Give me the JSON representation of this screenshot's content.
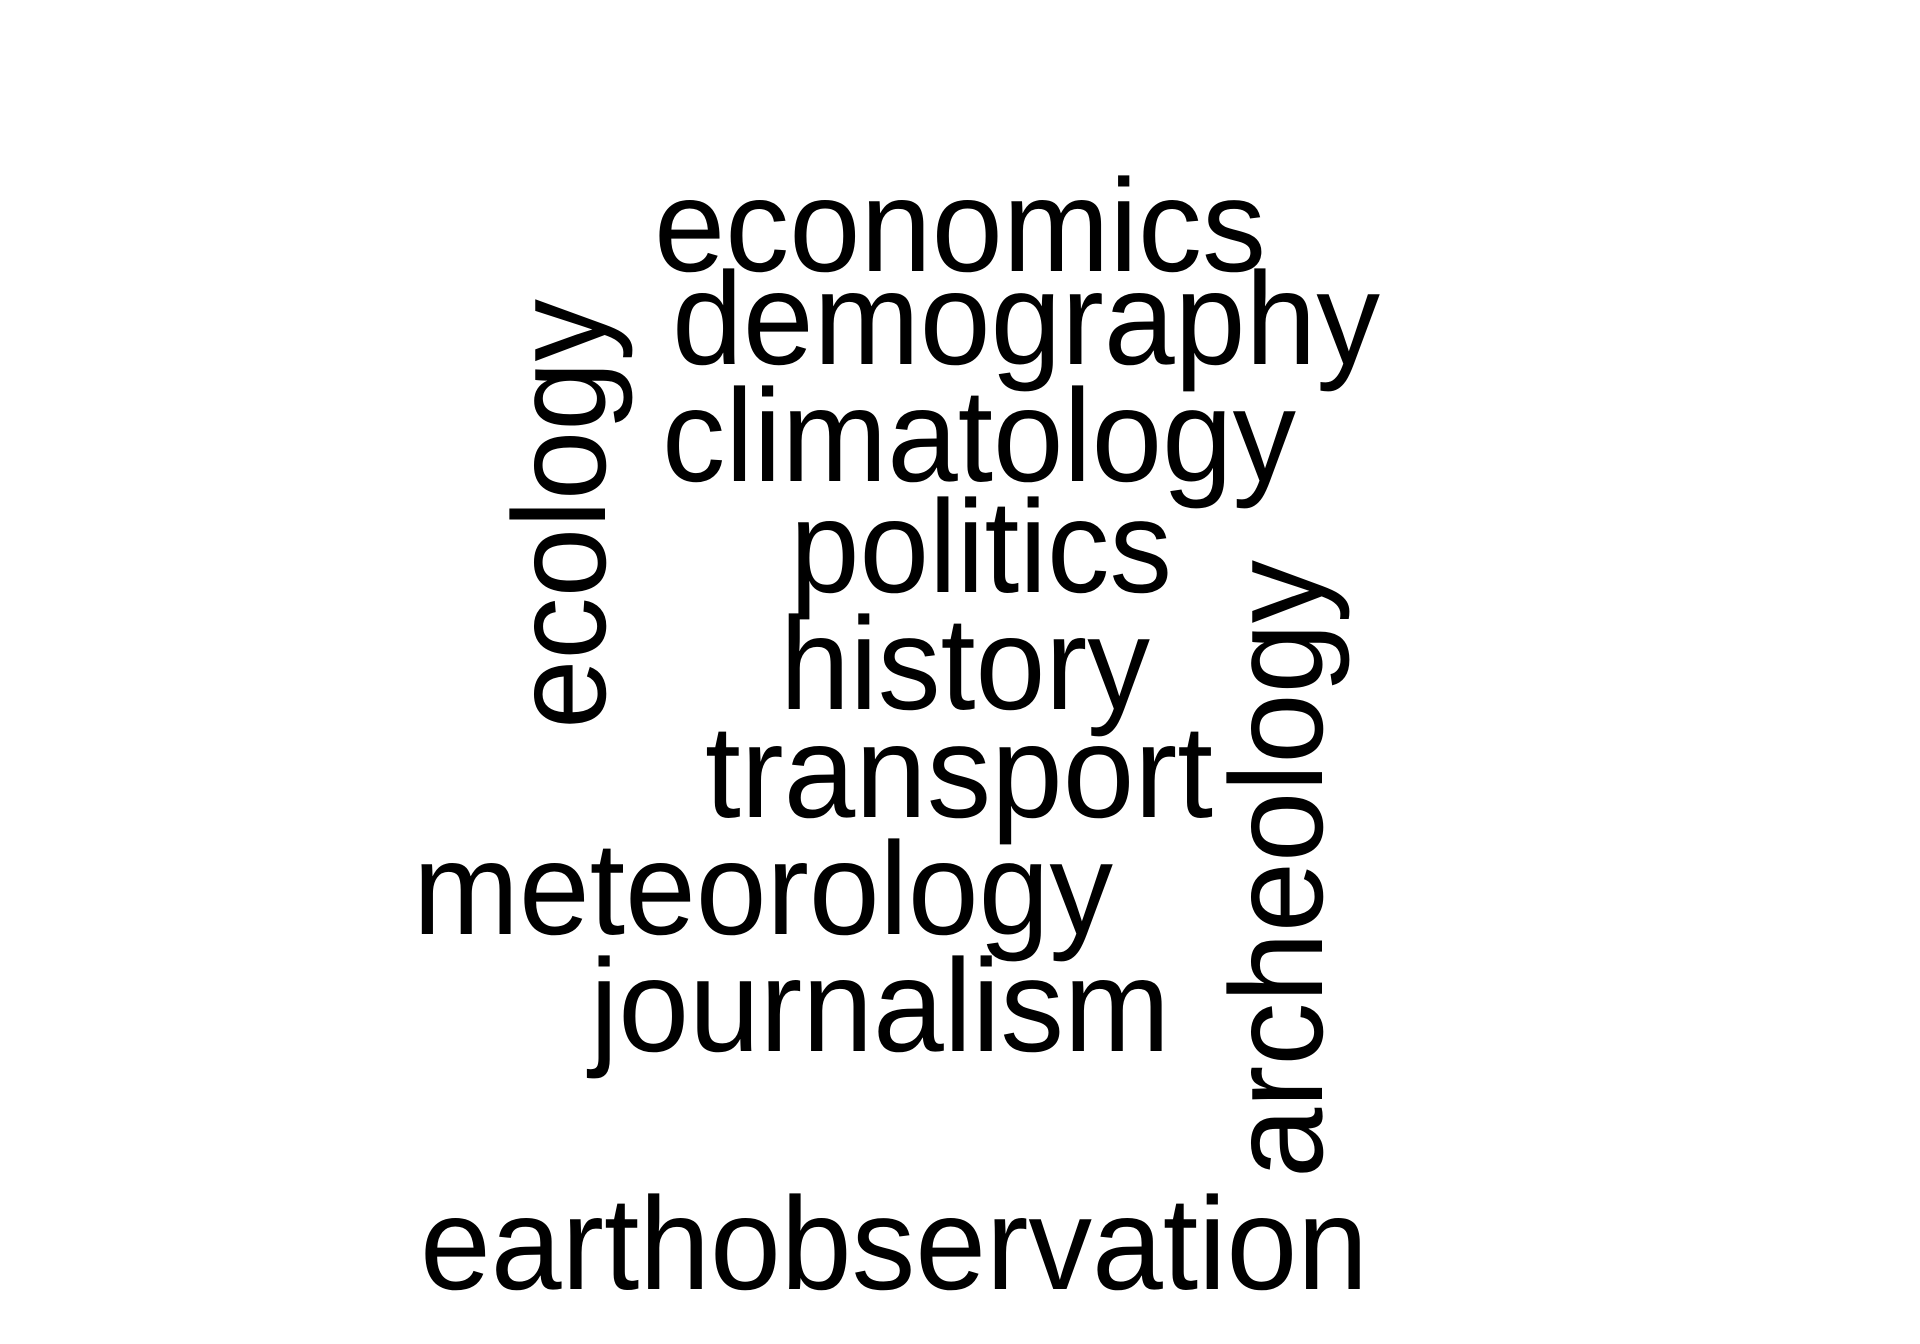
{
  "cloud": {
    "text_color": "#000000",
    "background": "#ffffff",
    "words": [
      {
        "text": "economics",
        "orientation": "horizontal"
      },
      {
        "text": "demography",
        "orientation": "horizontal"
      },
      {
        "text": "climatology",
        "orientation": "horizontal"
      },
      {
        "text": "politics",
        "orientation": "horizontal"
      },
      {
        "text": "history",
        "orientation": "horizontal"
      },
      {
        "text": "transport",
        "orientation": "horizontal"
      },
      {
        "text": "meteorology",
        "orientation": "horizontal"
      },
      {
        "text": "journalism",
        "orientation": "horizontal"
      },
      {
        "text": "earthobservation",
        "orientation": "horizontal"
      },
      {
        "text": "ecology",
        "orientation": "vertical"
      },
      {
        "text": "archeology",
        "orientation": "vertical"
      }
    ]
  }
}
